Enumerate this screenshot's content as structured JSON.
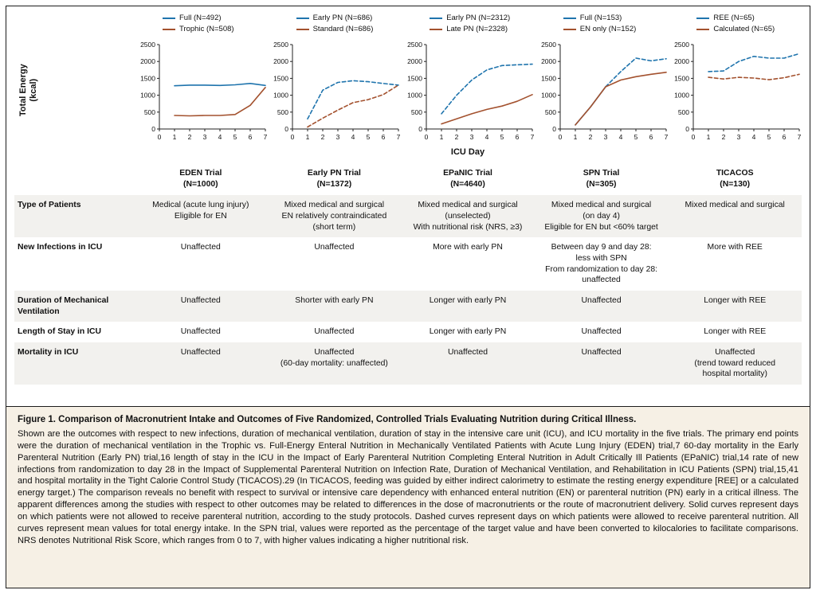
{
  "figure": {
    "ylabel": "Total Energy\n(kcal)",
    "xlabel": "ICU Day"
  },
  "colors": {
    "series_blue": "#1f74ad",
    "series_brown": "#a3512e",
    "caption_bg": "#f6f0e5"
  },
  "chart_data": {
    "type": "line",
    "note": "Five small-multiple line charts; x = ICU Day (0-7), y = Total Energy (kcal, 0-2500). Solid = PN not allowed, dashed = PN allowed.",
    "charts": [
      {
        "trial": "EDEN Trial (N=1000)",
        "xlim": [
          0,
          7
        ],
        "ylim": [
          0,
          2500
        ],
        "xticks": [
          0,
          1,
          2,
          3,
          4,
          5,
          6,
          7
        ],
        "yticks": [
          0,
          500,
          1000,
          1500,
          2000,
          2500
        ],
        "series": [
          {
            "name": "Full (N=492)",
            "color": "#1f74ad",
            "segments": [
              {
                "dash": false,
                "points": [
                  [
                    1,
                    1280
                  ],
                  [
                    2,
                    1300
                  ],
                  [
                    3,
                    1300
                  ],
                  [
                    4,
                    1290
                  ],
                  [
                    5,
                    1310
                  ],
                  [
                    6,
                    1350
                  ],
                  [
                    7,
                    1290
                  ]
                ]
              }
            ]
          },
          {
            "name": "Trophic (N=508)",
            "color": "#a3512e",
            "segments": [
              {
                "dash": false,
                "points": [
                  [
                    1,
                    400
                  ],
                  [
                    2,
                    390
                  ],
                  [
                    3,
                    400
                  ],
                  [
                    4,
                    400
                  ],
                  [
                    5,
                    430
                  ],
                  [
                    6,
                    700
                  ],
                  [
                    7,
                    1230
                  ]
                ]
              }
            ]
          }
        ]
      },
      {
        "trial": "Early PN Trial (N=1372)",
        "xlim": [
          0,
          7
        ],
        "ylim": [
          0,
          2500
        ],
        "xticks": [
          0,
          1,
          2,
          3,
          4,
          5,
          6,
          7
        ],
        "yticks": [
          0,
          500,
          1000,
          1500,
          2000,
          2500
        ],
        "series": [
          {
            "name": "Early PN (N=686)",
            "color": "#1f74ad",
            "segments": [
              {
                "dash": true,
                "points": [
                  [
                    1,
                    300
                  ],
                  [
                    2,
                    1150
                  ],
                  [
                    3,
                    1380
                  ],
                  [
                    4,
                    1430
                  ],
                  [
                    5,
                    1400
                  ],
                  [
                    6,
                    1350
                  ],
                  [
                    7,
                    1300
                  ]
                ]
              }
            ]
          },
          {
            "name": "Standard (N=686)",
            "color": "#a3512e",
            "segments": [
              {
                "dash": true,
                "points": [
                  [
                    1,
                    60
                  ],
                  [
                    2,
                    320
                  ],
                  [
                    3,
                    560
                  ],
                  [
                    4,
                    780
                  ],
                  [
                    5,
                    870
                  ],
                  [
                    6,
                    1020
                  ],
                  [
                    7,
                    1300
                  ]
                ]
              }
            ]
          }
        ]
      },
      {
        "trial": "EPaNIC Trial (N=4640)",
        "xlim": [
          0,
          7
        ],
        "ylim": [
          0,
          2500
        ],
        "xticks": [
          0,
          1,
          2,
          3,
          4,
          5,
          6,
          7
        ],
        "yticks": [
          0,
          500,
          1000,
          1500,
          2000,
          2500
        ],
        "series": [
          {
            "name": "Early PN (N=2312)",
            "color": "#1f74ad",
            "segments": [
              {
                "dash": true,
                "points": [
                  [
                    1,
                    450
                  ],
                  [
                    2,
                    1000
                  ],
                  [
                    3,
                    1450
                  ],
                  [
                    4,
                    1750
                  ],
                  [
                    5,
                    1880
                  ],
                  [
                    6,
                    1900
                  ],
                  [
                    7,
                    1920
                  ]
                ]
              }
            ]
          },
          {
            "name": "Late PN (N=2328)",
            "color": "#a3512e",
            "segments": [
              {
                "dash": false,
                "points": [
                  [
                    1,
                    150
                  ],
                  [
                    2,
                    300
                  ],
                  [
                    3,
                    450
                  ],
                  [
                    4,
                    580
                  ],
                  [
                    5,
                    680
                  ],
                  [
                    6,
                    820
                  ],
                  [
                    7,
                    1020
                  ]
                ]
              }
            ]
          }
        ]
      },
      {
        "trial": "SPN Trial (N=305)",
        "xlim": [
          0,
          7
        ],
        "ylim": [
          0,
          2500
        ],
        "xticks": [
          0,
          1,
          2,
          3,
          4,
          5,
          6,
          7
        ],
        "yticks": [
          0,
          500,
          1000,
          1500,
          2000,
          2500
        ],
        "series": [
          {
            "name": "Full (N=153)",
            "color": "#1f74ad",
            "segments": [
              {
                "dash": false,
                "points": [
                  [
                    1,
                    120
                  ],
                  [
                    2,
                    650
                  ],
                  [
                    3,
                    1250
                  ]
                ]
              },
              {
                "dash": true,
                "points": [
                  [
                    3,
                    1250
                  ],
                  [
                    4,
                    1700
                  ],
                  [
                    5,
                    2100
                  ],
                  [
                    6,
                    2020
                  ],
                  [
                    7,
                    2080
                  ]
                ]
              }
            ]
          },
          {
            "name": "EN only (N=152)",
            "color": "#a3512e",
            "segments": [
              {
                "dash": false,
                "points": [
                  [
                    1,
                    120
                  ],
                  [
                    2,
                    650
                  ],
                  [
                    3,
                    1250
                  ],
                  [
                    4,
                    1450
                  ],
                  [
                    5,
                    1550
                  ],
                  [
                    6,
                    1620
                  ],
                  [
                    7,
                    1680
                  ]
                ]
              }
            ]
          }
        ]
      },
      {
        "trial": "TICACOS (N=130)",
        "xlim": [
          0,
          7
        ],
        "ylim": [
          0,
          2500
        ],
        "xticks": [
          0,
          1,
          2,
          3,
          4,
          5,
          6,
          7
        ],
        "yticks": [
          0,
          500,
          1000,
          1500,
          2000,
          2500
        ],
        "series": [
          {
            "name": "REE (N=65)",
            "color": "#1f74ad",
            "segments": [
              {
                "dash": true,
                "points": [
                  [
                    1,
                    1700
                  ],
                  [
                    2,
                    1720
                  ],
                  [
                    3,
                    2000
                  ],
                  [
                    4,
                    2150
                  ],
                  [
                    5,
                    2100
                  ],
                  [
                    6,
                    2100
                  ],
                  [
                    7,
                    2230
                  ]
                ]
              }
            ]
          },
          {
            "name": "Calculated (N=65)",
            "color": "#a3512e",
            "segments": [
              {
                "dash": true,
                "points": [
                  [
                    1,
                    1530
                  ],
                  [
                    2,
                    1480
                  ],
                  [
                    3,
                    1530
                  ],
                  [
                    4,
                    1510
                  ],
                  [
                    5,
                    1460
                  ],
                  [
                    6,
                    1520
                  ],
                  [
                    7,
                    1620
                  ]
                ]
              }
            ]
          }
        ]
      }
    ]
  },
  "table": {
    "col_headers": [
      [
        "EDEN Trial",
        "(N=1000)"
      ],
      [
        "Early PN Trial",
        "(N=1372)"
      ],
      [
        "EPaNIC Trial",
        "(N=4640)"
      ],
      [
        "SPN Trial",
        "(N=305)"
      ],
      [
        "TICACOS",
        "(N=130)"
      ]
    ],
    "rows": [
      {
        "label": "Type of Patients",
        "cells": [
          [
            "Medical (acute lung injury)",
            "Eligible for EN"
          ],
          [
            "Mixed medical and surgical",
            "EN relatively contraindicated",
            "(short term)"
          ],
          [
            "Mixed medical and surgical",
            "(unselected)",
            "With nutritional risk (NRS, ≥3)"
          ],
          [
            "Mixed medical and surgical",
            "(on day 4)",
            "Eligible for EN but <60% target"
          ],
          [
            "Mixed medical and surgical"
          ]
        ]
      },
      {
        "label": "New Infections in ICU",
        "cells": [
          "Unaffected",
          "Unaffected",
          "More with early PN",
          [
            "Between day 9 and day 28:",
            "less with SPN",
            "From randomization to day 28:",
            "unaffected"
          ],
          "More with REE"
        ]
      },
      {
        "label": "Duration of Mechanical\nVentilation",
        "cells": [
          "Unaffected",
          "Shorter with early PN",
          "Longer with early PN",
          "Unaffected",
          "Longer with REE"
        ]
      },
      {
        "label": "Length of Stay in ICU",
        "cells": [
          "Unaffected",
          "Unaffected",
          "Longer with early PN",
          "Unaffected",
          "Longer with REE"
        ]
      },
      {
        "label": "Mortality in ICU",
        "cells": [
          "Unaffected",
          [
            "Unaffected",
            "(60-day mortality: unaffected)"
          ],
          "Unaffected",
          "Unaffected",
          [
            "Unaffected",
            "(trend toward reduced",
            "hospital mortality)"
          ]
        ]
      }
    ]
  },
  "caption": {
    "title": "Figure 1. Comparison of Macronutrient Intake and Outcomes of Five Randomized, Controlled Trials Evaluating Nutrition during Critical Illness.",
    "body": "Shown are the outcomes with respect to new infections, duration of mechanical ventilation, duration of stay in the intensive care unit (ICU), and ICU mortality in the five trials. The primary end points were the duration of mechanical ventilation in the Trophic vs. Full-Energy Enteral Nutrition in Mechanically Ventilated Patients with Acute Lung Injury (EDEN) trial,7 60-day mortality in the Early Parenteral Nutrition (Early PN) trial,16 length of stay in the ICU in the Impact of Early Parenteral Nutrition Completing Enteral Nutrition in Adult Critically Ill Patients (EPaNIC) trial,14 rate of new infections from randomization to day 28 in the Impact of Supplemental Parenteral Nutrition on Infection Rate, Duration of Mechanical Ventilation, and Rehabilitation in ICU Patients (SPN) trial,15,41 and hospital mortality in the Tight Calorie Control Study (TICACOS).29 (In TICACOS, feeding was guided by either indirect calorimetry to estimate the resting energy expenditure [REE] or a calculated energy target.) The comparison reveals no benefit with respect to survival or intensive care dependency with enhanced enteral nutrition (EN) or parenteral nutrition (PN) early in a critical illness. The apparent differences among the studies with respect to other outcomes may be related to differences in the dose of macronutrients or the route of macronutrient delivery. Solid curves represent days on which patients were not allowed to receive parenteral nutrition, according to the study protocols. Dashed curves represent days on which patients were allowed to receive parenteral nutrition. All curves represent mean values for total energy intake. In the SPN trial, values were reported as the percentage of the target value and have been converted to kilocalories to facilitate comparisons. NRS denotes Nutritional Risk Score, which ranges from 0 to 7, with higher values indicating a higher nutritional risk."
  }
}
